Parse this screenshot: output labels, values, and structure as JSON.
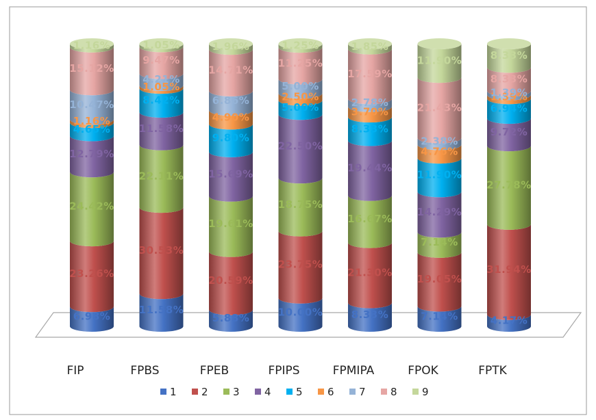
{
  "chart_data": {
    "type": "bar",
    "stacked": true,
    "style": "3d-cylinder",
    "categories": [
      "FIP",
      "FPBS",
      "FPEB",
      "FPIPS",
      "FPMIPA",
      "FPOK",
      "FPTK"
    ],
    "series": [
      {
        "name": "1",
        "color": "#4472C4",
        "values": [
          6.98,
          11.58,
          5.88,
          10.0,
          8.33,
          7.14,
          4.17
        ],
        "labels": [
          "6.98%",
          "11.58%",
          "5.88%",
          "10.00%",
          "8.33%",
          "7.14%",
          "4.17%"
        ]
      },
      {
        "name": "2",
        "color": "#C0504D",
        "values": [
          23.26,
          30.53,
          20.59,
          23.75,
          21.3,
          19.05,
          31.94
        ],
        "labels": [
          "23.26%",
          "30.53%",
          "20.59%",
          "23.75%",
          "21.30%",
          "19.05%",
          "31.94%"
        ]
      },
      {
        "name": "3",
        "color": "#9BBB59",
        "values": [
          24.42,
          22.11,
          19.61,
          18.75,
          16.67,
          7.14,
          27.78
        ],
        "labels": [
          "24.42%",
          "22.11%",
          "19.61%",
          "18.75%",
          "16.67%",
          "7.14%",
          "27.78%"
        ]
      },
      {
        "name": "4",
        "color": "#8064A2",
        "values": [
          12.79,
          11.58,
          15.69,
          22.5,
          19.44,
          14.29,
          9.72
        ],
        "labels": [
          "12.79%",
          "11.58%",
          "15.69%",
          "22.50%",
          "19.44%",
          "14.29%",
          "9.72%"
        ]
      },
      {
        "name": "5",
        "color": "#00B0F0",
        "values": [
          4.65,
          8.42,
          9.8,
          5.0,
          8.33,
          11.9,
          6.94
        ],
        "labels": [
          "4.65%",
          "8.42%",
          "9.80%",
          "5.00%",
          "8.33%",
          "11.90%",
          "6.94%"
        ]
      },
      {
        "name": "6",
        "color": "#F79646",
        "values": [
          1.16,
          1.05,
          4.9,
          2.5,
          3.7,
          4.76,
          1.39
        ],
        "labels": [
          "1.16%",
          "1.05%",
          "4.90%",
          "2.50%",
          "3.70%",
          "4.76%",
          "1.39%"
        ]
      },
      {
        "name": "7",
        "color": "#95B3D7",
        "values": [
          10.47,
          4.21,
          6.86,
          5.0,
          2.78,
          2.38,
          1.39
        ],
        "labels": [
          "10.47%",
          "4.21%",
          "6.86%",
          "5.00%",
          "2.78%",
          "2.38%",
          "1.39%"
        ]
      },
      {
        "name": "8",
        "color": "#E6A6A4",
        "values": [
          15.12,
          9.47,
          14.71,
          11.25,
          17.59,
          21.43,
          8.33
        ],
        "labels": [
          "15.12%",
          "9.47%",
          "14.71%",
          "11.25%",
          "17.59%",
          "21.43%",
          "8.33%"
        ]
      },
      {
        "name": "9",
        "color": "#C4D79B",
        "values": [
          1.16,
          1.05,
          1.96,
          1.25,
          1.85,
          11.9,
          8.33
        ],
        "labels": [
          "1.16%",
          "1.05%",
          "1.96%",
          "1.25%",
          "1.85%",
          "11.90%",
          "8.33%"
        ]
      }
    ],
    "ylim": [
      0,
      100
    ],
    "grid": false,
    "legend_position": "bottom"
  }
}
